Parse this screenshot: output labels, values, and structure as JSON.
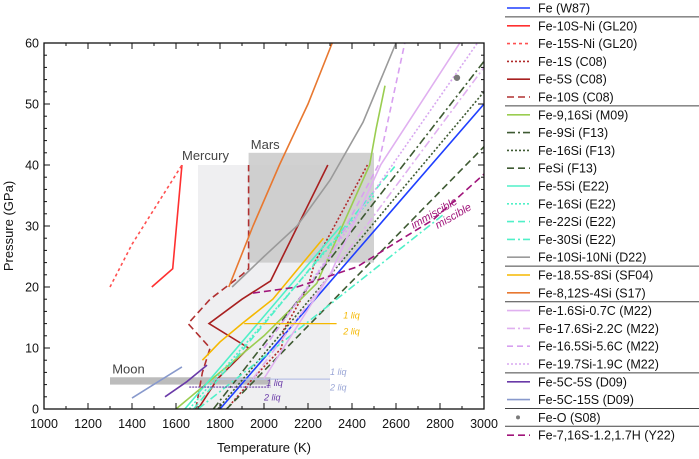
{
  "chart_data": {
    "type": "line",
    "xlabel": "Temperature (K)",
    "ylabel": "Pressure (GPa)",
    "xlim": [
      1000,
      3000
    ],
    "ylim": [
      0,
      60
    ],
    "xticks": [
      1000,
      1200,
      1400,
      1600,
      1800,
      2000,
      2200,
      2400,
      2600,
      2800,
      3000
    ],
    "yticks": [
      0,
      10,
      20,
      30,
      40,
      50,
      60
    ],
    "grid": false,
    "legend_placement": "right-outside",
    "regions": [
      {
        "label": "Mercury",
        "T": [
          1700,
          2300
        ],
        "P": [
          0,
          40
        ],
        "color": "#ececee"
      },
      {
        "label": "Mars",
        "T": [
          1930,
          2500
        ],
        "P": [
          24,
          42
        ],
        "color": "#c9c9c9"
      },
      {
        "label": "Moon",
        "T": [
          1300,
          2030
        ],
        "P": [
          4,
          5.2
        ],
        "color": "#b5b5b5"
      }
    ],
    "annotations": [
      {
        "text": "1 liq",
        "T": 2360,
        "P": 14.8,
        "color": "#f5b800"
      },
      {
        "text": "2 liq",
        "T": 2360,
        "P": 12.2,
        "color": "#f5b800"
      },
      {
        "text": "1 liq",
        "T": 2300,
        "P": 5.6,
        "color": "#9aa6d6"
      },
      {
        "text": "2 liq",
        "T": 2300,
        "P": 3.0,
        "color": "#9aa6d6"
      },
      {
        "text": "1 liq",
        "T": 2010,
        "P": 3.8,
        "color": "#6a3aa8"
      },
      {
        "text": "2 liq",
        "T": 2000,
        "P": 1.4,
        "color": "#6a3aa8"
      },
      {
        "text": "immiscible",
        "T": 2680,
        "P": 29.5,
        "color": "#a0147a"
      },
      {
        "text": "miscible",
        "T": 2790,
        "P": 29.5,
        "color": "#a0147a"
      }
    ],
    "tie_lines": [
      {
        "T": [
          1910,
          2330
        ],
        "P": 14,
        "color": "#f5b800"
      },
      {
        "T": [
          1780,
          2300
        ],
        "P": 4.9,
        "color": "#b8c2e6"
      },
      {
        "T": [
          1660,
          2030
        ],
        "P": 3.6,
        "color": "#6a3aa8"
      }
    ],
    "series": [
      {
        "name": "Fe (W87)",
        "color": "#1f3fff",
        "dash": "",
        "group": 0,
        "points": [
          [
            1800,
            0
          ],
          [
            3000,
            50
          ]
        ]
      },
      {
        "name": "Fe-10S-Ni (GL20)",
        "color": "#ff3030",
        "dash": "",
        "group": 1,
        "points": [
          [
            1490,
            20
          ],
          [
            1585,
            23
          ],
          [
            1627,
            40
          ]
        ]
      },
      {
        "name": "Fe-15S-Ni (GL20)",
        "color": "#ff5050",
        "dash": "3,3",
        "group": 1,
        "points": [
          [
            1300,
            20
          ],
          [
            1400,
            27
          ],
          [
            1627,
            40
          ]
        ]
      },
      {
        "name": "Fe-1S (C08)",
        "color": "#b02a2a",
        "dash": "2,2",
        "group": 1,
        "points": [
          [
            1830,
            0
          ],
          [
            1950,
            5
          ],
          [
            2080,
            10
          ],
          [
            2090,
            13
          ],
          [
            2200,
            20
          ],
          [
            2230,
            24
          ],
          [
            2470,
            40
          ]
        ]
      },
      {
        "name": "Fe-5S (C08)",
        "color": "#a82020",
        "dash": "",
        "group": 1,
        "points": [
          [
            1700,
            0
          ],
          [
            1790,
            5
          ],
          [
            1930,
            10
          ],
          [
            1750,
            14
          ],
          [
            1900,
            18
          ],
          [
            2030,
            21
          ],
          [
            2290,
            40
          ]
        ]
      },
      {
        "name": "Fe-10S (C08)",
        "color": "#b03030",
        "dash": "7,4",
        "group": 1,
        "points": [
          [
            1690,
            0
          ],
          [
            1720,
            6
          ],
          [
            1755,
            10
          ],
          [
            1655,
            14
          ],
          [
            1755,
            18
          ],
          [
            1900,
            22
          ],
          [
            1930,
            23
          ],
          [
            1930,
            40
          ]
        ]
      },
      {
        "name": "Fe-9,16Si (M09)",
        "color": "#9acd50",
        "dash": "",
        "group": 2,
        "points": [
          [
            1600,
            0
          ],
          [
            1800,
            6
          ],
          [
            2000,
            12
          ],
          [
            2240,
            20.6
          ],
          [
            2480,
            40
          ],
          [
            2510,
            46
          ],
          [
            2550,
            53
          ]
        ]
      },
      {
        "name": "Fe-9Si (F13)",
        "color": "#3e5a32",
        "dash": "8,3,2,3",
        "group": 2,
        "points": [
          [
            1770,
            0
          ],
          [
            3000,
            57
          ]
        ]
      },
      {
        "name": "Fe-16Si (F13)",
        "color": "#3e5a32",
        "dash": "2,2",
        "group": 2,
        "points": [
          [
            1790,
            0
          ],
          [
            3000,
            52
          ]
        ]
      },
      {
        "name": "FeSi (F13)",
        "color": "#3e5a32",
        "dash": "7,4",
        "group": 2,
        "points": [
          [
            1830,
            0
          ],
          [
            3000,
            43
          ]
        ]
      },
      {
        "name": "Fe-5Si (E22)",
        "color": "#50f0c8",
        "dash": "",
        "group": 2,
        "points": [
          [
            1640,
            0
          ],
          [
            2350,
            30
          ]
        ]
      },
      {
        "name": "Fe-16Si (E22)",
        "color": "#50f0c8",
        "dash": "2,2",
        "group": 2,
        "points": [
          [
            1660,
            0
          ],
          [
            2500,
            35
          ]
        ]
      },
      {
        "name": "Fe-22Si (E22)",
        "color": "#50f0c8",
        "dash": "7,4",
        "group": 2,
        "points": [
          [
            1680,
            0
          ],
          [
            2600,
            40
          ]
        ]
      },
      {
        "name": "Fe-30Si (E22)",
        "color": "#50f0c8",
        "dash": "8,3,2,3",
        "group": 2,
        "points": [
          [
            1700,
            0
          ],
          [
            2820,
            32
          ]
        ]
      },
      {
        "name": "Fe-10Si-10Ni (D22)",
        "color": "#9a9a9a",
        "dash": "",
        "group": 2,
        "points": [
          [
            1855,
            20
          ],
          [
            2000,
            25
          ],
          [
            2150,
            30
          ],
          [
            2300,
            37.5
          ],
          [
            2450,
            47
          ],
          [
            2600,
            60
          ]
        ]
      },
      {
        "name": "Fe-18.5S-8Si (SF04)",
        "color": "#f5b800",
        "dash": "",
        "group": 3,
        "points": [
          [
            1720,
            8
          ],
          [
            1800,
            11
          ],
          [
            1900,
            14
          ],
          [
            2040,
            18
          ],
          [
            2270,
            28
          ]
        ]
      },
      {
        "name": "Fe-8,12S-4Si (S17)",
        "color": "#e87830",
        "dash": "",
        "group": 3,
        "points": [
          [
            1840,
            20
          ],
          [
            1950,
            30
          ],
          [
            2070,
            40
          ],
          [
            2200,
            50
          ],
          [
            2310,
            60
          ]
        ]
      },
      {
        "name": "Fe-1.6Si-0.7C (M22)",
        "color": "#e0b0f0",
        "dash": "",
        "group": 4,
        "points": [
          [
            2000,
            5
          ],
          [
            2300,
            22
          ],
          [
            2530,
            40
          ],
          [
            2890,
            60
          ]
        ]
      },
      {
        "name": "Fe-17.6Si-2.2C (M22)",
        "color": "#e0b0f0",
        "dash": "8,3,2,3",
        "group": 4,
        "points": [
          [
            1950,
            5
          ],
          [
            3000,
            56
          ]
        ]
      },
      {
        "name": "Fe-16.5Si-5.6C (M22)",
        "color": "#d8a0f0",
        "dash": "6,4",
        "group": 4,
        "points": [
          [
            2000,
            10
          ],
          [
            2300,
            25
          ],
          [
            2520,
            40
          ],
          [
            2640,
            60
          ]
        ]
      },
      {
        "name": "Fe-19.7Si-1.9C (M22)",
        "color": "#d8a8f0",
        "dash": "2,2",
        "group": 4,
        "points": [
          [
            2100,
            15
          ],
          [
            2970,
            60
          ]
        ]
      },
      {
        "name": "Fe-5C-5S (D09)",
        "color": "#6a3aa8",
        "dash": "",
        "group": 5,
        "points": [
          [
            1550,
            2
          ],
          [
            1650,
            4.5
          ],
          [
            1741,
            7.2
          ]
        ]
      },
      {
        "name": "Fe-5C-15S (D09)",
        "color": "#8899cc",
        "dash": "",
        "group": 5,
        "points": [
          [
            1400,
            1.8
          ],
          [
            1520,
            4.5
          ],
          [
            1627,
            6.9
          ]
        ]
      },
      {
        "name": "Fe-O (S08)",
        "color": "#7a7a7a",
        "dash": "",
        "group": 6,
        "marker": "point",
        "points": [
          [
            2877,
            54.3
          ]
        ]
      },
      {
        "name": "Fe-7,16S-1.2,1.7H (Y22)",
        "color": "#a0147a",
        "dash": "7,4",
        "group": 7,
        "points": [
          [
            1950,
            19
          ],
          [
            2150,
            20
          ],
          [
            2423,
            23.3
          ],
          [
            2618,
            27.7
          ],
          [
            2768,
            31
          ],
          [
            3000,
            38.5
          ]
        ]
      }
    ]
  }
}
